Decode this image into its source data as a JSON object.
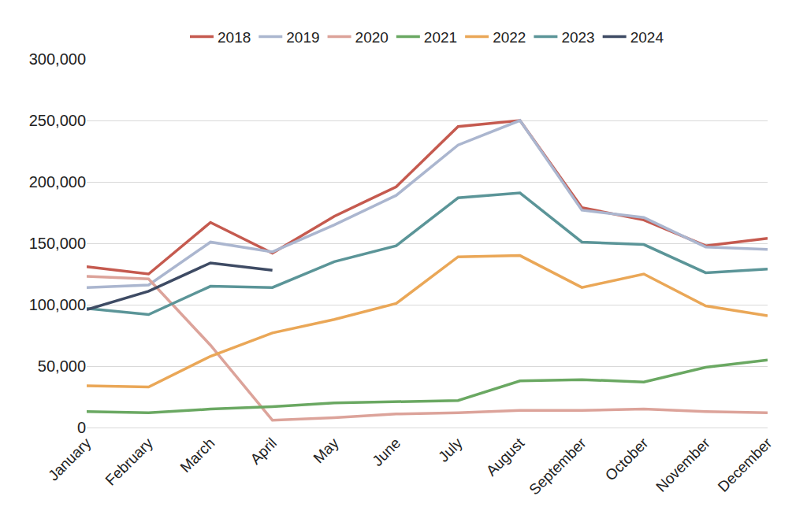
{
  "chart_data": {
    "type": "line",
    "categories": [
      "January",
      "February",
      "March",
      "April",
      "May",
      "June",
      "July",
      "August",
      "September",
      "October",
      "November",
      "December"
    ],
    "series": [
      {
        "name": "2018",
        "color": "#c55a4f",
        "values": [
          131000,
          125000,
          167000,
          142000,
          172000,
          196000,
          245000,
          250000,
          179000,
          169000,
          148000,
          154000
        ]
      },
      {
        "name": "2019",
        "color": "#abb6cf",
        "values": [
          114000,
          116000,
          151000,
          143000,
          165000,
          189000,
          230000,
          250000,
          177000,
          171000,
          147000,
          145000
        ]
      },
      {
        "name": "2020",
        "color": "#dca39a",
        "values": [
          123000,
          121000,
          67000,
          6000,
          8000,
          11000,
          12000,
          14000,
          14000,
          15000,
          13000,
          12000
        ]
      },
      {
        "name": "2021",
        "color": "#6aa862",
        "values": [
          13000,
          12000,
          15000,
          17000,
          20000,
          21000,
          22000,
          38000,
          39000,
          37000,
          49000,
          55000
        ]
      },
      {
        "name": "2022",
        "color": "#eaa757",
        "values": [
          34000,
          33000,
          58000,
          77000,
          88000,
          101000,
          139000,
          140000,
          114000,
          125000,
          99000,
          91000
        ]
      },
      {
        "name": "2023",
        "color": "#5b9598",
        "values": [
          97000,
          92000,
          115000,
          114000,
          135000,
          148000,
          187000,
          191000,
          151000,
          149000,
          126000,
          129000
        ]
      },
      {
        "name": "2024",
        "color": "#3e4b64",
        "values": [
          96000,
          111000,
          134000,
          128000,
          null,
          null,
          null,
          null,
          null,
          null,
          null,
          null
        ]
      }
    ],
    "ylim": [
      0,
      300000
    ],
    "yticks": [
      0,
      {
        "value": 50000,
        "label": "50,000"
      },
      {
        "value": 100000,
        "label": "100,000"
      },
      {
        "value": 150000,
        "label": "150,000"
      },
      {
        "value": 200000,
        "label": "200,000"
      },
      {
        "value": 250000,
        "label": "250,000"
      },
      {
        "value": 300000,
        "label": "300,000"
      }
    ],
    "grid": true,
    "legend": "top"
  }
}
